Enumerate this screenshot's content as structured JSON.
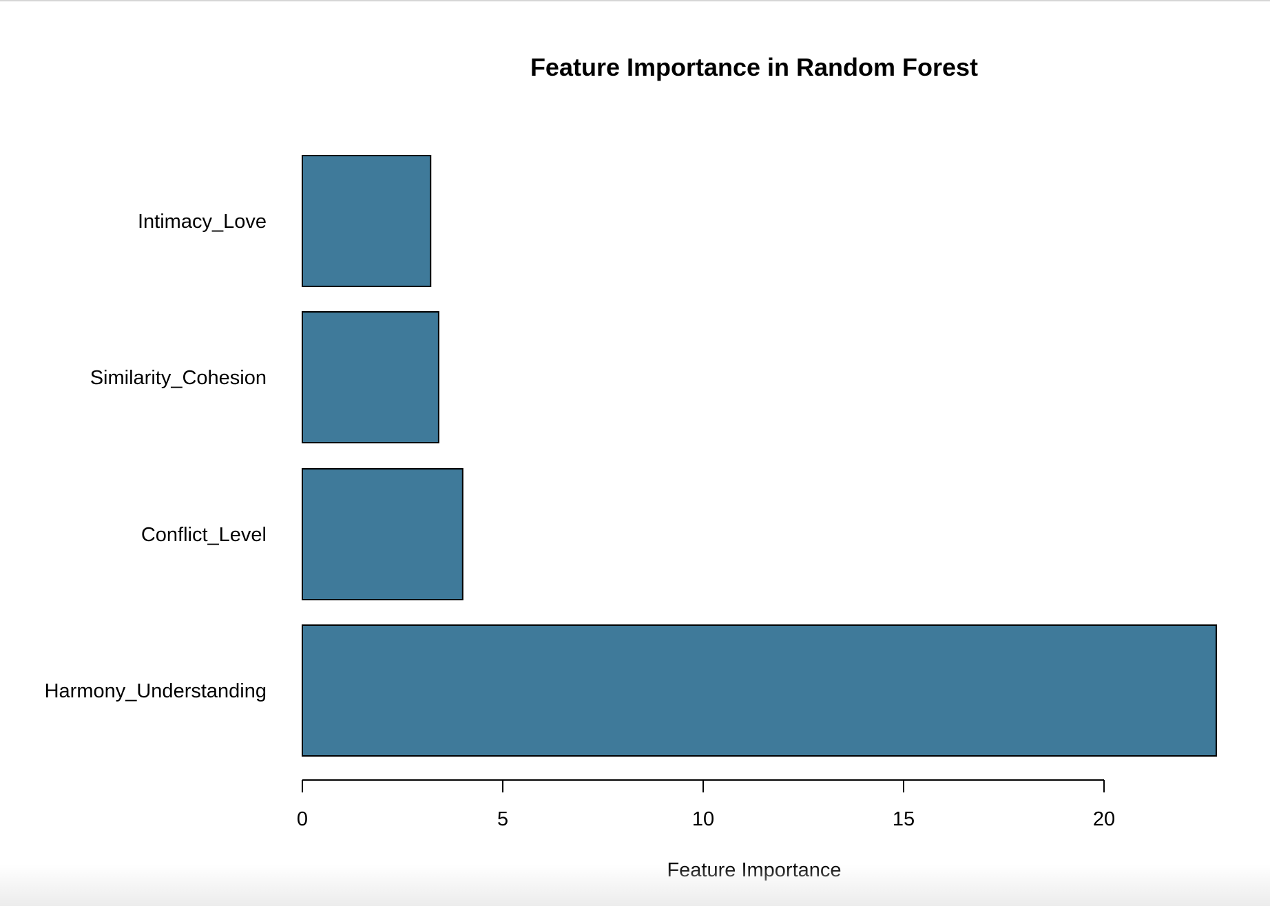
{
  "chart_data": {
    "type": "bar",
    "orientation": "horizontal",
    "title": "Feature Importance in Random Forest",
    "xlabel": "Feature Importance",
    "ylabel": "",
    "categories": [
      "Harmony_Understanding",
      "Conflict_Level",
      "Similarity_Cohesion",
      "Intimacy_Love"
    ],
    "values": [
      22.8,
      4.0,
      3.4,
      3.2
    ],
    "xticks": [
      "0",
      "5",
      "10",
      "15",
      "20"
    ],
    "xlim": [
      0,
      22.8
    ],
    "grid": false,
    "legend": "none",
    "bar_color": "#3f7a9a",
    "bar_edge_color": "#000000"
  }
}
